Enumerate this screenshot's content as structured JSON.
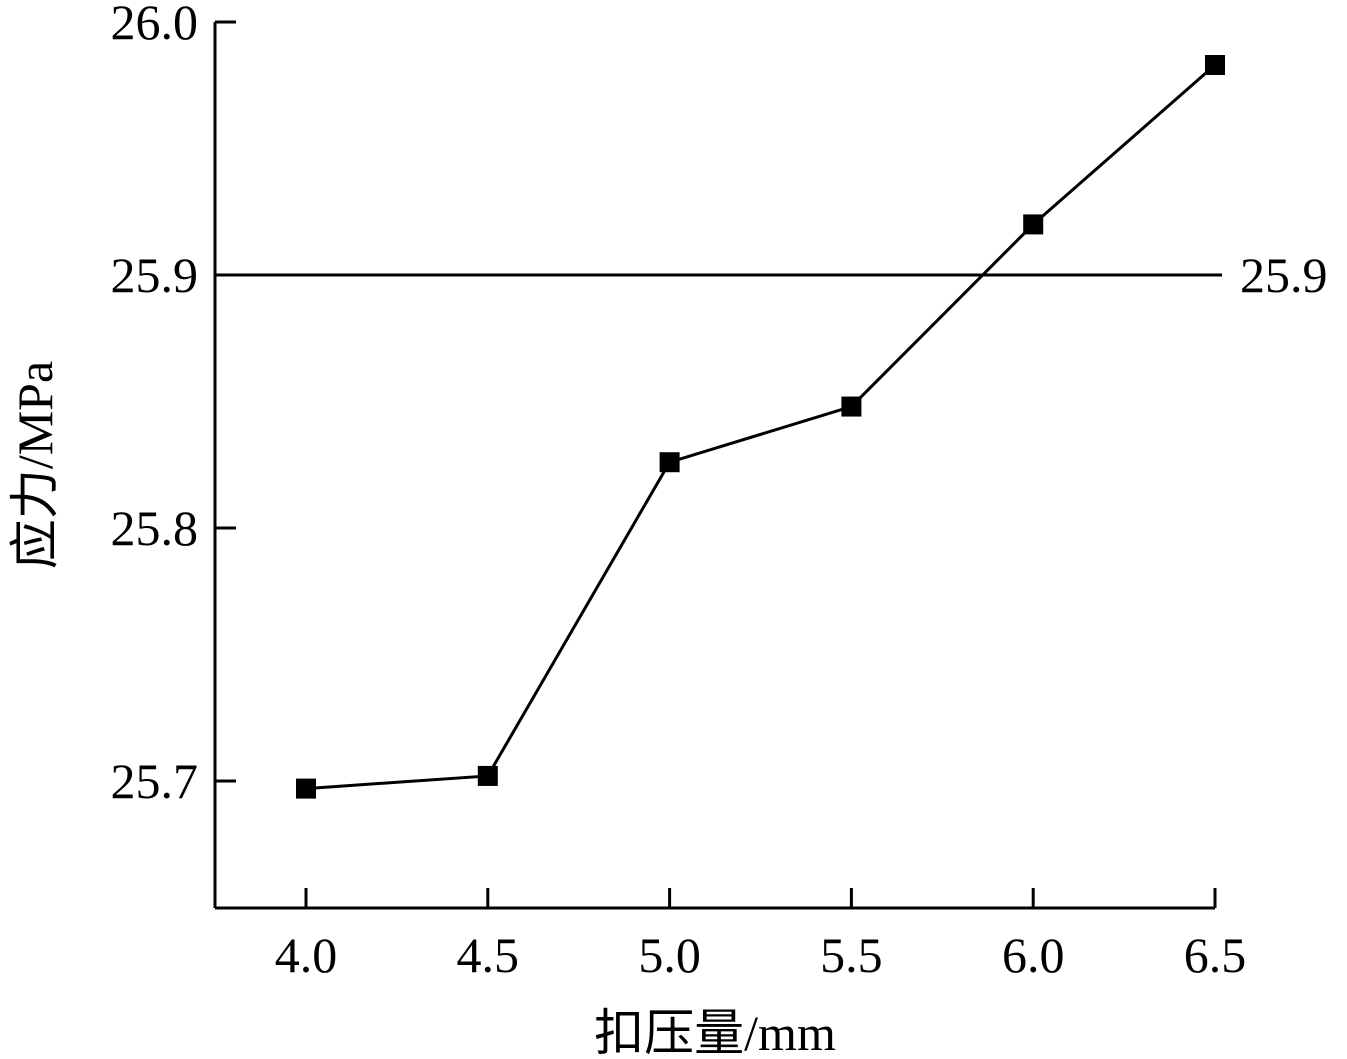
{
  "chart_data": {
    "type": "line",
    "xlabel": "扣压量/mm",
    "ylabel": "应力/MPa",
    "x": [
      4.0,
      4.5,
      5.0,
      5.5,
      6.0,
      6.5
    ],
    "x_tick_labels": [
      "4.0",
      "4.5",
      "5.0",
      "5.5",
      "6.0",
      "6.5"
    ],
    "y_ticks": [
      25.7,
      25.8,
      25.9,
      26.0
    ],
    "y_tick_labels": [
      "25.7",
      "25.8",
      "25.9",
      "26.0"
    ],
    "xlim": [
      3.75,
      6.5
    ],
    "ylim": [
      25.65,
      26.0
    ],
    "grid": false,
    "series": [
      {
        "values": [
          25.697,
          25.702,
          25.826,
          25.848,
          25.92,
          25.983
        ],
        "marker": "square",
        "color": "#000000"
      }
    ],
    "reference_line": {
      "y": 25.9,
      "label": "25.9"
    }
  }
}
